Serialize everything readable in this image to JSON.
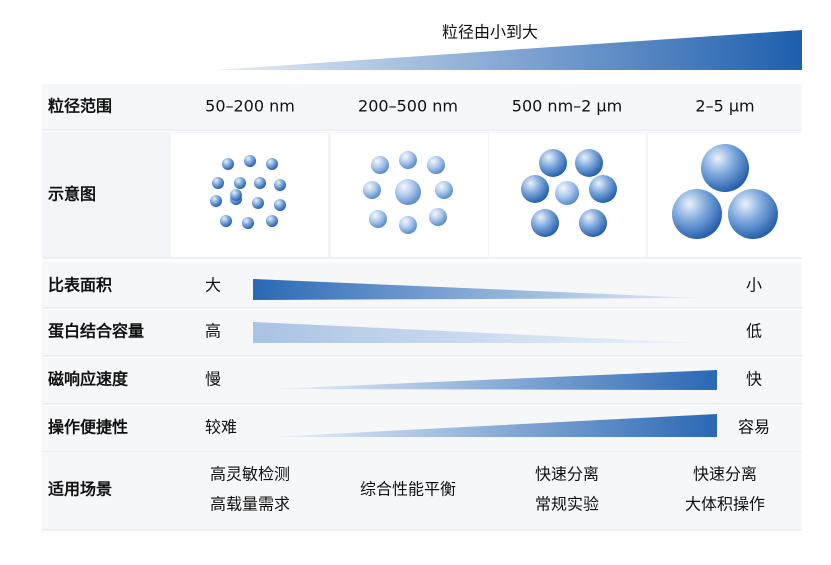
{
  "header": {
    "title": "粒径由小到大"
  },
  "size_row": {
    "label": "粒径范围",
    "columns": [
      "50–200 nm",
      "200–500 nm",
      "500 nm–2 µm",
      "2–5 µm"
    ]
  },
  "diagram_row": {
    "label": "示意图"
  },
  "trend_rows": [
    {
      "label": "比表面积",
      "start": "大",
      "end": "小"
    },
    {
      "label": "蛋白结合容量",
      "start": "高",
      "end": "低"
    },
    {
      "label": "磁响应速度",
      "start": "慢",
      "end": "快"
    },
    {
      "label": "操作便捷性",
      "start": "较难",
      "end": "容易"
    }
  ],
  "scenario_row": {
    "label": "适用场景",
    "cells": [
      [
        "高灵敏检测",
        "高载量需求"
      ],
      [
        "综合性能平衡"
      ],
      [
        "快速分离",
        "常规实验"
      ],
      [
        "快速分离",
        "大体积操作"
      ]
    ]
  }
}
